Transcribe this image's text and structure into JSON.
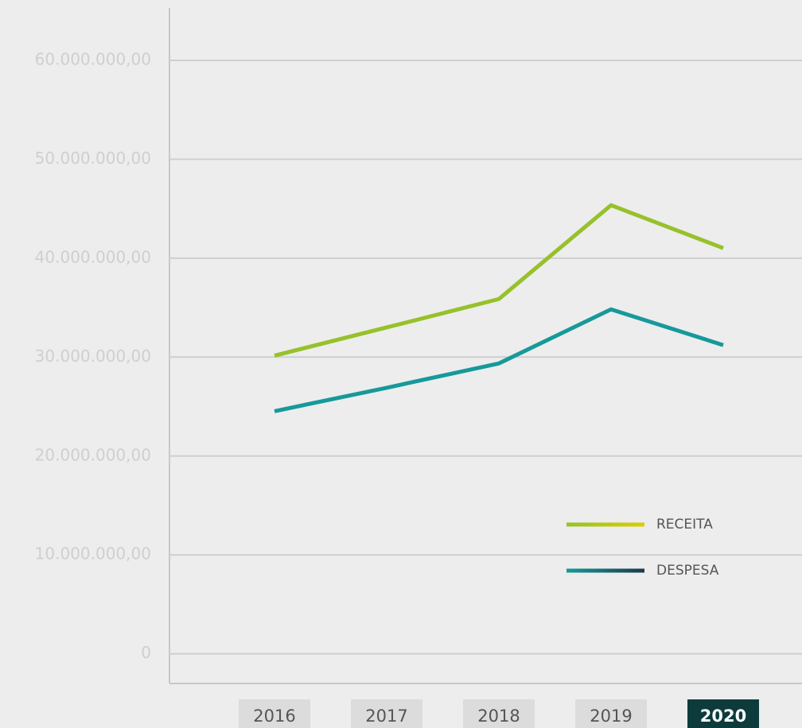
{
  "chart_data": {
    "type": "line",
    "categories": [
      "2016",
      "2017",
      "2018",
      "2019",
      "2020"
    ],
    "selected": "2020",
    "series": [
      {
        "name": "RECEITA",
        "color": "#97c12b",
        "legend_colors": [
          "#97c12b",
          "#d8cf00"
        ],
        "values": [
          30150000,
          33000000,
          35870000,
          45360000,
          41020000
        ]
      },
      {
        "name": "DESPESA",
        "color": "#17999a",
        "legend_colors": [
          "#17999a",
          "#1c3a4a"
        ],
        "values": [
          24530000,
          26900000,
          29360000,
          34830000,
          31210000
        ]
      }
    ],
    "ylim": [
      -3000000,
      65300000
    ],
    "yticks": [
      0,
      {
        "value": 10000000,
        "label": "10.000.000,00"
      },
      {
        "value": 20000000,
        "label": "20.000.000,00"
      },
      {
        "value": 30000000,
        "label": "30.000.000,00"
      },
      {
        "value": 40000000,
        "label": "40.000.000,00"
      },
      {
        "value": 50000000,
        "label": "50.000.000,00"
      },
      {
        "value": 60000000,
        "label": "60.000.000,00"
      }
    ],
    "grid": true
  }
}
